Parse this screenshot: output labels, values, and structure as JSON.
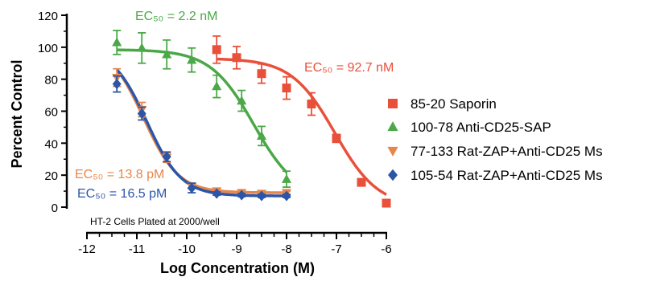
{
  "chart_data": {
    "type": "scatter",
    "title": "",
    "xlabel": "Log Concentration (M)",
    "ylabel": "Percent Control",
    "xlim": [
      -12,
      -6
    ],
    "ylim": [
      0,
      120
    ],
    "xticks": [
      "-12",
      "-11",
      "-10",
      "-9",
      "-8",
      "-7",
      "-6"
    ],
    "yticks": [
      "0",
      "20",
      "40",
      "60",
      "80",
      "100",
      "120"
    ],
    "grid": false,
    "legend_position": "right",
    "note": "HT-2 Cells Plated at 2000/well",
    "annotations": [
      {
        "text": "EC₅₀ = 2.2 nM",
        "series": 1
      },
      {
        "text": "EC₅₀ = 92.7 nM",
        "series": 0
      },
      {
        "text": "EC₅₀ = 13.8 pM",
        "series": 2
      },
      {
        "text": "EC₅₀ = 16.5 pM",
        "series": 3
      }
    ],
    "series": [
      {
        "name": "85-20 Saporin",
        "color": "#e8503a",
        "marker": "square",
        "x": [
          -9.4,
          -9.0,
          -8.5,
          -8.0,
          -7.5,
          -7.0,
          -6.5,
          -6.0
        ],
        "y": [
          98.5,
          93.5,
          83.5,
          74.5,
          64.5,
          43.0,
          15.5,
          2.5
        ],
        "err": [
          8.5,
          7.0,
          6.0,
          7.0,
          7.0,
          2.5,
          1.0,
          0.5
        ],
        "fit": {
          "top": 93,
          "bottom": 0,
          "logec50": -7.033,
          "hill": 1.0,
          "xmin": -9.4,
          "xmax": -6.0
        }
      },
      {
        "name": "100-78 Anti-CD25-SAP",
        "color": "#4aa846",
        "marker": "triangle-up",
        "x": [
          -11.4,
          -10.9,
          -10.4,
          -9.9,
          -9.4,
          -8.9,
          -8.5,
          -8.0
        ],
        "y": [
          103.0,
          99.5,
          95.5,
          92.0,
          75.5,
          66.5,
          44.5,
          17.5
        ],
        "err": [
          7.5,
          9.5,
          9.0,
          7.5,
          7.0,
          6.5,
          6.0,
          5.0
        ],
        "fit": {
          "top": 98.5,
          "bottom": 5,
          "logec50": -8.658,
          "hill": 1.0,
          "xmin": -11.4,
          "xmax": -8.0
        }
      },
      {
        "name": "77-133 Rat-ZAP+Anti-CD25 Ms",
        "color": "#e8864a",
        "marker": "triangle-down",
        "x": [
          -11.4,
          -10.9,
          -10.4,
          -9.9,
          -9.4,
          -8.9,
          -8.5,
          -8.0
        ],
        "y": [
          81.0,
          61.0,
          31.0,
          13.0,
          10.0,
          9.0,
          8.5,
          9.0
        ],
        "err": [
          5.5,
          4.5,
          3.0,
          1.5,
          1.0,
          1.0,
          1.0,
          1.0
        ],
        "fit": {
          "top": 102,
          "bottom": 9,
          "logec50": -10.86,
          "hill": 1.25,
          "xmin": -11.4,
          "xmax": -8.0
        }
      },
      {
        "name": "105-54 Rat-ZAP+Anti-CD25 Ms",
        "color": "#2b56a8",
        "marker": "diamond",
        "x": [
          -11.4,
          -10.9,
          -10.4,
          -9.9,
          -9.4,
          -8.9,
          -8.5,
          -8.0
        ],
        "y": [
          77.0,
          58.5,
          31.5,
          12.0,
          8.5,
          7.5,
          7.0,
          7.0
        ],
        "err": [
          5.0,
          4.0,
          3.0,
          3.0,
          1.0,
          1.0,
          1.0,
          1.0
        ],
        "fit": {
          "top": 100,
          "bottom": 7,
          "logec50": -10.8,
          "hill": 1.25,
          "xmin": -11.4,
          "xmax": -8.0
        }
      }
    ]
  }
}
